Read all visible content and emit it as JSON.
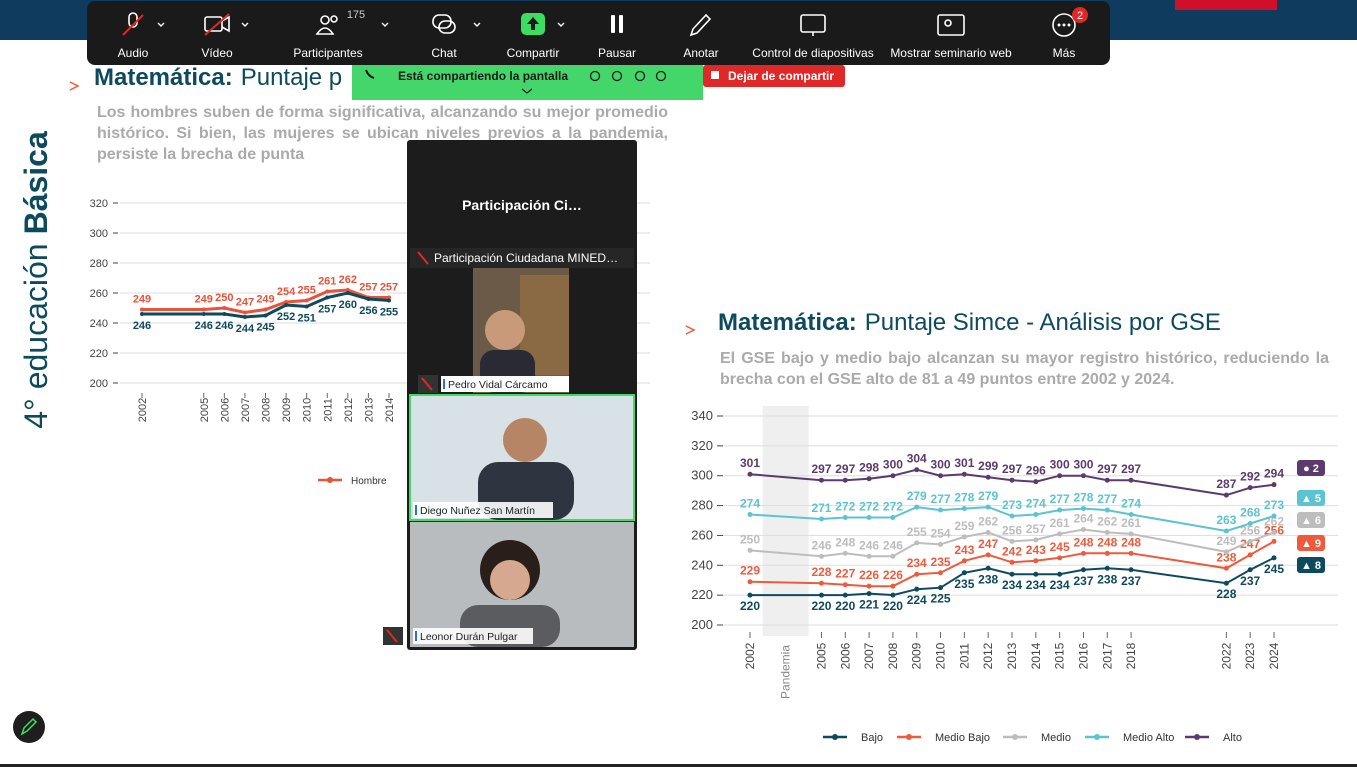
{
  "toolbar": {
    "buttons": [
      "Audio",
      "Vídeo",
      "Participantes",
      "Chat",
      "Compartir",
      "Pausar",
      "Anotar",
      "Control de diapositivas",
      "Mostrar seminario web",
      "Más"
    ],
    "participants_count": 175,
    "notifications": 2
  },
  "share_bar": {
    "status": "Está compartiendo la pantalla",
    "stop": "Dejar de compartir"
  },
  "slide": {
    "side_title": "4° educación",
    "side_title_bold": "Básica"
  },
  "meeting_panel": {
    "title": "Participación  Ci…",
    "host": "Participación Ciudadana MINED…",
    "participants": [
      "Pedro Vidal Cárcamo",
      "Diego Nuñez San Martín",
      "Leonor Durán Pulgar"
    ]
  },
  "chart_data": [
    {
      "type": "line",
      "title_prefix": "Matemática:",
      "title": "Puntaje p",
      "subtitle": "Los hombres suben de forma significativa, alcanzando su mejor promedio histórico. Si bien, las mujeres se ubican niveles previos a la pandemia, persiste la brecha de punta",
      "x": [
        2002,
        2005,
        2006,
        2007,
        2008,
        2009,
        2010,
        2011,
        2012,
        2013,
        2014
      ],
      "xlim": [
        2002,
        2014
      ],
      "ylim": [
        200,
        320
      ],
      "yticks": [
        200,
        220,
        240,
        260,
        280,
        300,
        320
      ],
      "grid": true,
      "series": [
        {
          "name": "Hombre",
          "color": "#e8533a",
          "values": [
            249,
            249,
            250,
            247,
            249,
            254,
            255,
            261,
            262,
            257,
            257
          ]
        },
        {
          "color": "#0d4a5e",
          "values": [
            246,
            246,
            246,
            244,
            245,
            252,
            251,
            257,
            260,
            256,
            255
          ]
        }
      ]
    },
    {
      "type": "line",
      "title_prefix": "Matemática:",
      "title": "Puntaje Simce - Análisis por GSE",
      "subtitle": "El GSE bajo y medio bajo alcanzan su mayor registro histórico, reduciendo la brecha con el GSE alto de 81 a 49 puntos entre 2002 y 2024.",
      "x": [
        2002,
        2005,
        2006,
        2007,
        2008,
        2009,
        2010,
        2011,
        2012,
        2013,
        2014,
        2015,
        2016,
        2017,
        2018,
        2022,
        2023,
        2024
      ],
      "xlim": [
        2002,
        2024
      ],
      "ylim": [
        200,
        340
      ],
      "yticks": [
        200,
        220,
        240,
        260,
        280,
        300,
        320,
        340
      ],
      "grid": true,
      "band_label": "Pandemia",
      "series": [
        {
          "name": "Bajo",
          "color": "#0d4a5e",
          "badge": "▲ 8",
          "values": [
            220,
            220,
            220,
            221,
            220,
            224,
            225,
            235,
            238,
            234,
            234,
            234,
            237,
            238,
            237,
            228,
            237,
            245
          ]
        },
        {
          "name": "Medio Bajo",
          "color": "#f05a3c",
          "badge": "▲ 9",
          "values": [
            229,
            228,
            227,
            226,
            226,
            234,
            235,
            243,
            247,
            242,
            243,
            245,
            248,
            248,
            248,
            238,
            247,
            256
          ]
        },
        {
          "name": "Medio",
          "color": "#bdbdbd",
          "badge": "▲ 6",
          "values": [
            250,
            246,
            248,
            246,
            246,
            255,
            254,
            259,
            262,
            256,
            257,
            261,
            264,
            262,
            261,
            249,
            256,
            262
          ]
        },
        {
          "name": "Medio Alto",
          "color": "#5bc4d0",
          "badge": "▲ 5",
          "values": [
            274,
            271,
            272,
            272,
            272,
            279,
            277,
            278,
            279,
            273,
            274,
            277,
            278,
            277,
            274,
            263,
            268,
            273
          ]
        },
        {
          "name": "Alto",
          "color": "#5b3a6e",
          "badge": "● 2",
          "values": [
            301,
            297,
            297,
            298,
            300,
            304,
            300,
            301,
            299,
            297,
            296,
            300,
            300,
            297,
            297,
            287,
            292,
            294
          ]
        }
      ]
    }
  ]
}
